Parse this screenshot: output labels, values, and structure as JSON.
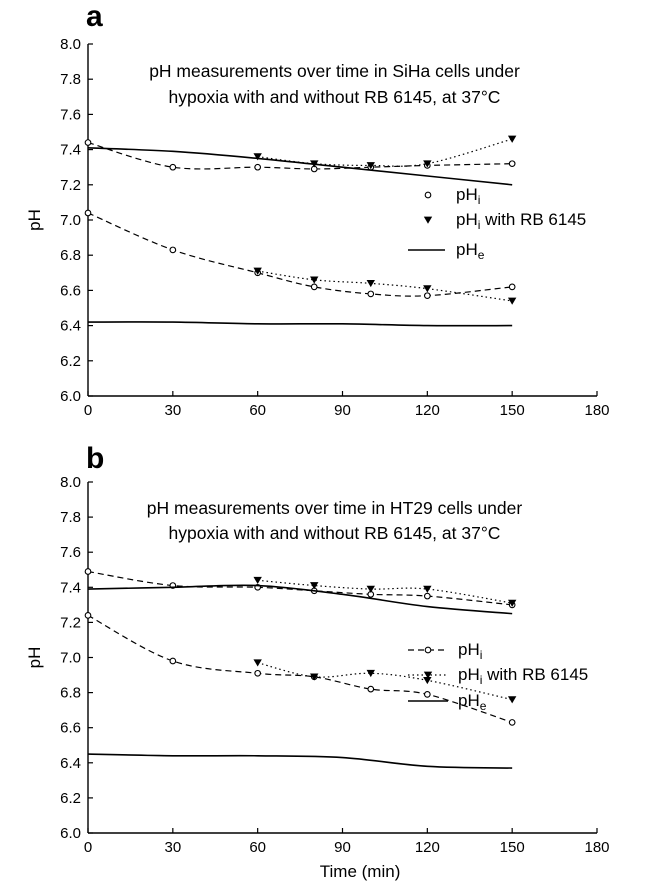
{
  "chart_data": [
    {
      "panel": "a",
      "type": "line",
      "title_lines": [
        "pH measurements over time in SiHa cells under",
        "hypoxia with and without RB 6145, at 37°C"
      ],
      "xlabel": "",
      "ylabel": "pH",
      "xlim": [
        0,
        180
      ],
      "ylim": [
        6.0,
        8.0
      ],
      "x_ticks": [
        "0",
        "30",
        "60",
        "90",
        "120",
        "150",
        "180"
      ],
      "y_ticks": [
        "6.0",
        "6.2",
        "6.4",
        "6.6",
        "6.8",
        "7.0",
        "7.2",
        "7.4",
        "7.6",
        "7.8",
        "8.0"
      ],
      "legend": [
        {
          "base": "pH",
          "sub": "i",
          "suffix": "",
          "marker": "circle",
          "line": "none"
        },
        {
          "base": "pH",
          "sub": "i",
          "suffix": " with RB 6145",
          "marker": "triangle",
          "line": "none"
        },
        {
          "base": "pH",
          "sub": "e",
          "suffix": "",
          "marker": "none",
          "line": "solid"
        }
      ],
      "series": [
        {
          "key": "pHi_upper",
          "style": "dashed",
          "marker": "circle",
          "x": [
            0,
            30,
            60,
            80,
            100,
            120,
            150
          ],
          "y": [
            7.44,
            7.3,
            7.3,
            7.29,
            7.3,
            7.31,
            7.32
          ]
        },
        {
          "key": "pHi_rb_upper",
          "style": "dotted",
          "marker": "triangle",
          "x": [
            60,
            80,
            100,
            120,
            150
          ],
          "y": [
            7.36,
            7.32,
            7.31,
            7.32,
            7.46
          ]
        },
        {
          "key": "pHe_upper",
          "style": "solid",
          "marker": "none",
          "x": [
            0,
            30,
            60,
            90,
            120,
            150
          ],
          "y": [
            7.41,
            7.39,
            7.35,
            7.3,
            7.25,
            7.2
          ]
        },
        {
          "key": "pHi_lower",
          "style": "dashed",
          "marker": "circle",
          "x": [
            0,
            30,
            60,
            80,
            100,
            120,
            150
          ],
          "y": [
            7.04,
            6.83,
            6.7,
            6.62,
            6.58,
            6.57,
            6.62
          ]
        },
        {
          "key": "pHi_rb_lower",
          "style": "dotted",
          "marker": "triangle",
          "x": [
            60,
            80,
            100,
            120,
            150
          ],
          "y": [
            6.71,
            6.66,
            6.64,
            6.61,
            6.54
          ]
        },
        {
          "key": "pHe_lower",
          "style": "solid",
          "marker": "none",
          "x": [
            0,
            30,
            60,
            90,
            120,
            150
          ],
          "y": [
            6.42,
            6.42,
            6.41,
            6.41,
            6.4,
            6.4
          ]
        }
      ]
    },
    {
      "panel": "b",
      "type": "line",
      "title_lines": [
        "pH measurements over time in HT29 cells under",
        "hypoxia with and without RB 6145, at 37°C"
      ],
      "xlabel": "Time (min)",
      "ylabel": "pH",
      "xlim": [
        0,
        180
      ],
      "ylim": [
        6.0,
        8.0
      ],
      "x_ticks": [
        "0",
        "30",
        "60",
        "90",
        "120",
        "150",
        "180"
      ],
      "y_ticks": [
        "6.0",
        "6.2",
        "6.4",
        "6.6",
        "6.8",
        "7.0",
        "7.2",
        "7.4",
        "7.6",
        "7.8",
        "8.0"
      ],
      "legend": [
        {
          "base": "pH",
          "sub": "i",
          "suffix": "",
          "marker": "circle",
          "line": "dashed"
        },
        {
          "base": "pH",
          "sub": "i",
          "suffix": " with RB 6145",
          "marker": "triangle",
          "line": "dotted"
        },
        {
          "base": "pH",
          "sub": "e",
          "suffix": "",
          "marker": "none",
          "line": "solid"
        }
      ],
      "series": [
        {
          "key": "pHi_upper",
          "style": "dashed",
          "marker": "circle",
          "x": [
            0,
            30,
            60,
            80,
            100,
            120,
            150
          ],
          "y": [
            7.49,
            7.41,
            7.4,
            7.38,
            7.36,
            7.35,
            7.3
          ]
        },
        {
          "key": "pHi_rb_upper",
          "style": "dotted",
          "marker": "triangle",
          "x": [
            60,
            80,
            100,
            120,
            150
          ],
          "y": [
            7.44,
            7.41,
            7.39,
            7.39,
            7.31
          ]
        },
        {
          "key": "pHe_upper",
          "style": "solid",
          "marker": "none",
          "x": [
            0,
            30,
            60,
            90,
            120,
            150
          ],
          "y": [
            7.39,
            7.4,
            7.41,
            7.36,
            7.29,
            7.25
          ]
        },
        {
          "key": "pHi_lower",
          "style": "dashed",
          "marker": "circle",
          "x": [
            0,
            30,
            60,
            80,
            100,
            120,
            150
          ],
          "y": [
            7.24,
            6.98,
            6.91,
            6.89,
            6.82,
            6.79,
            6.63
          ]
        },
        {
          "key": "pHi_rb_lower",
          "style": "dotted",
          "marker": "triangle",
          "x": [
            60,
            80,
            100,
            120,
            150
          ],
          "y": [
            6.97,
            6.89,
            6.91,
            6.87,
            6.76
          ]
        },
        {
          "key": "pHe_lower",
          "style": "solid",
          "marker": "none",
          "x": [
            0,
            30,
            60,
            90,
            120,
            150
          ],
          "y": [
            6.45,
            6.44,
            6.44,
            6.43,
            6.38,
            6.37
          ]
        }
      ]
    }
  ]
}
